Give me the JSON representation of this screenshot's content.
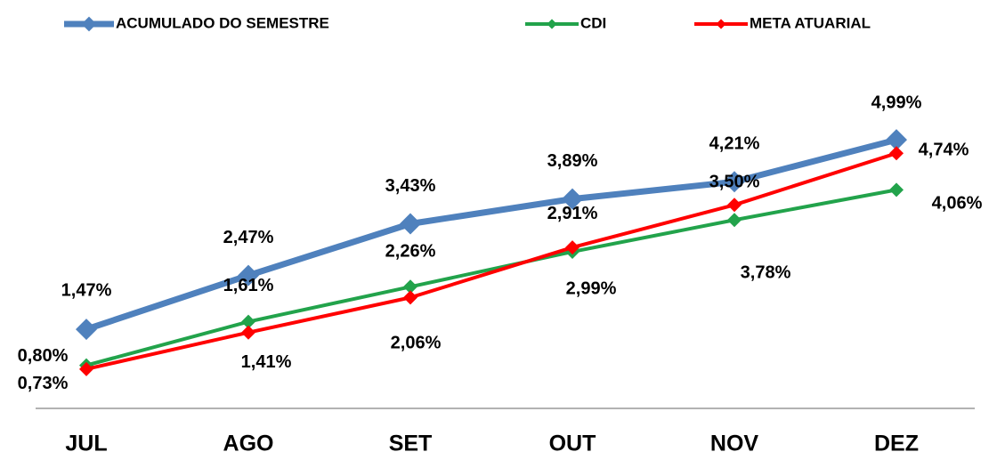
{
  "chart_data": {
    "type": "line",
    "categories": [
      "JUL",
      "AGO",
      "SET",
      "OUT",
      "NOV",
      "DEZ"
    ],
    "ylim": [
      0,
      6
    ],
    "series": [
      {
        "name": "ACUMULADO DO SEMESTRE",
        "color": "#4f81bd",
        "values": [
          1.47,
          2.47,
          3.43,
          3.89,
          4.21,
          4.99
        ],
        "value_labels": [
          "1,47%",
          "2,47%",
          "3,43%",
          "3,89%",
          "4,21%",
          "4,99%"
        ]
      },
      {
        "name": "CDI",
        "color": "#22a34b",
        "values": [
          0.8,
          1.61,
          2.26,
          2.91,
          3.5,
          4.06
        ],
        "value_labels": [
          "0,80%",
          "1,61%",
          "2,26%",
          "2,91%",
          "3,50%",
          "4,06%"
        ]
      },
      {
        "name": "META ATUARIAL",
        "color": "#ff0000",
        "values": [
          0.73,
          1.41,
          2.06,
          2.99,
          3.78,
          4.74
        ],
        "value_labels": [
          "0,73%",
          "1,41%",
          "2,06%",
          "2,99%",
          "3,78%",
          "4,74%"
        ]
      }
    ]
  }
}
